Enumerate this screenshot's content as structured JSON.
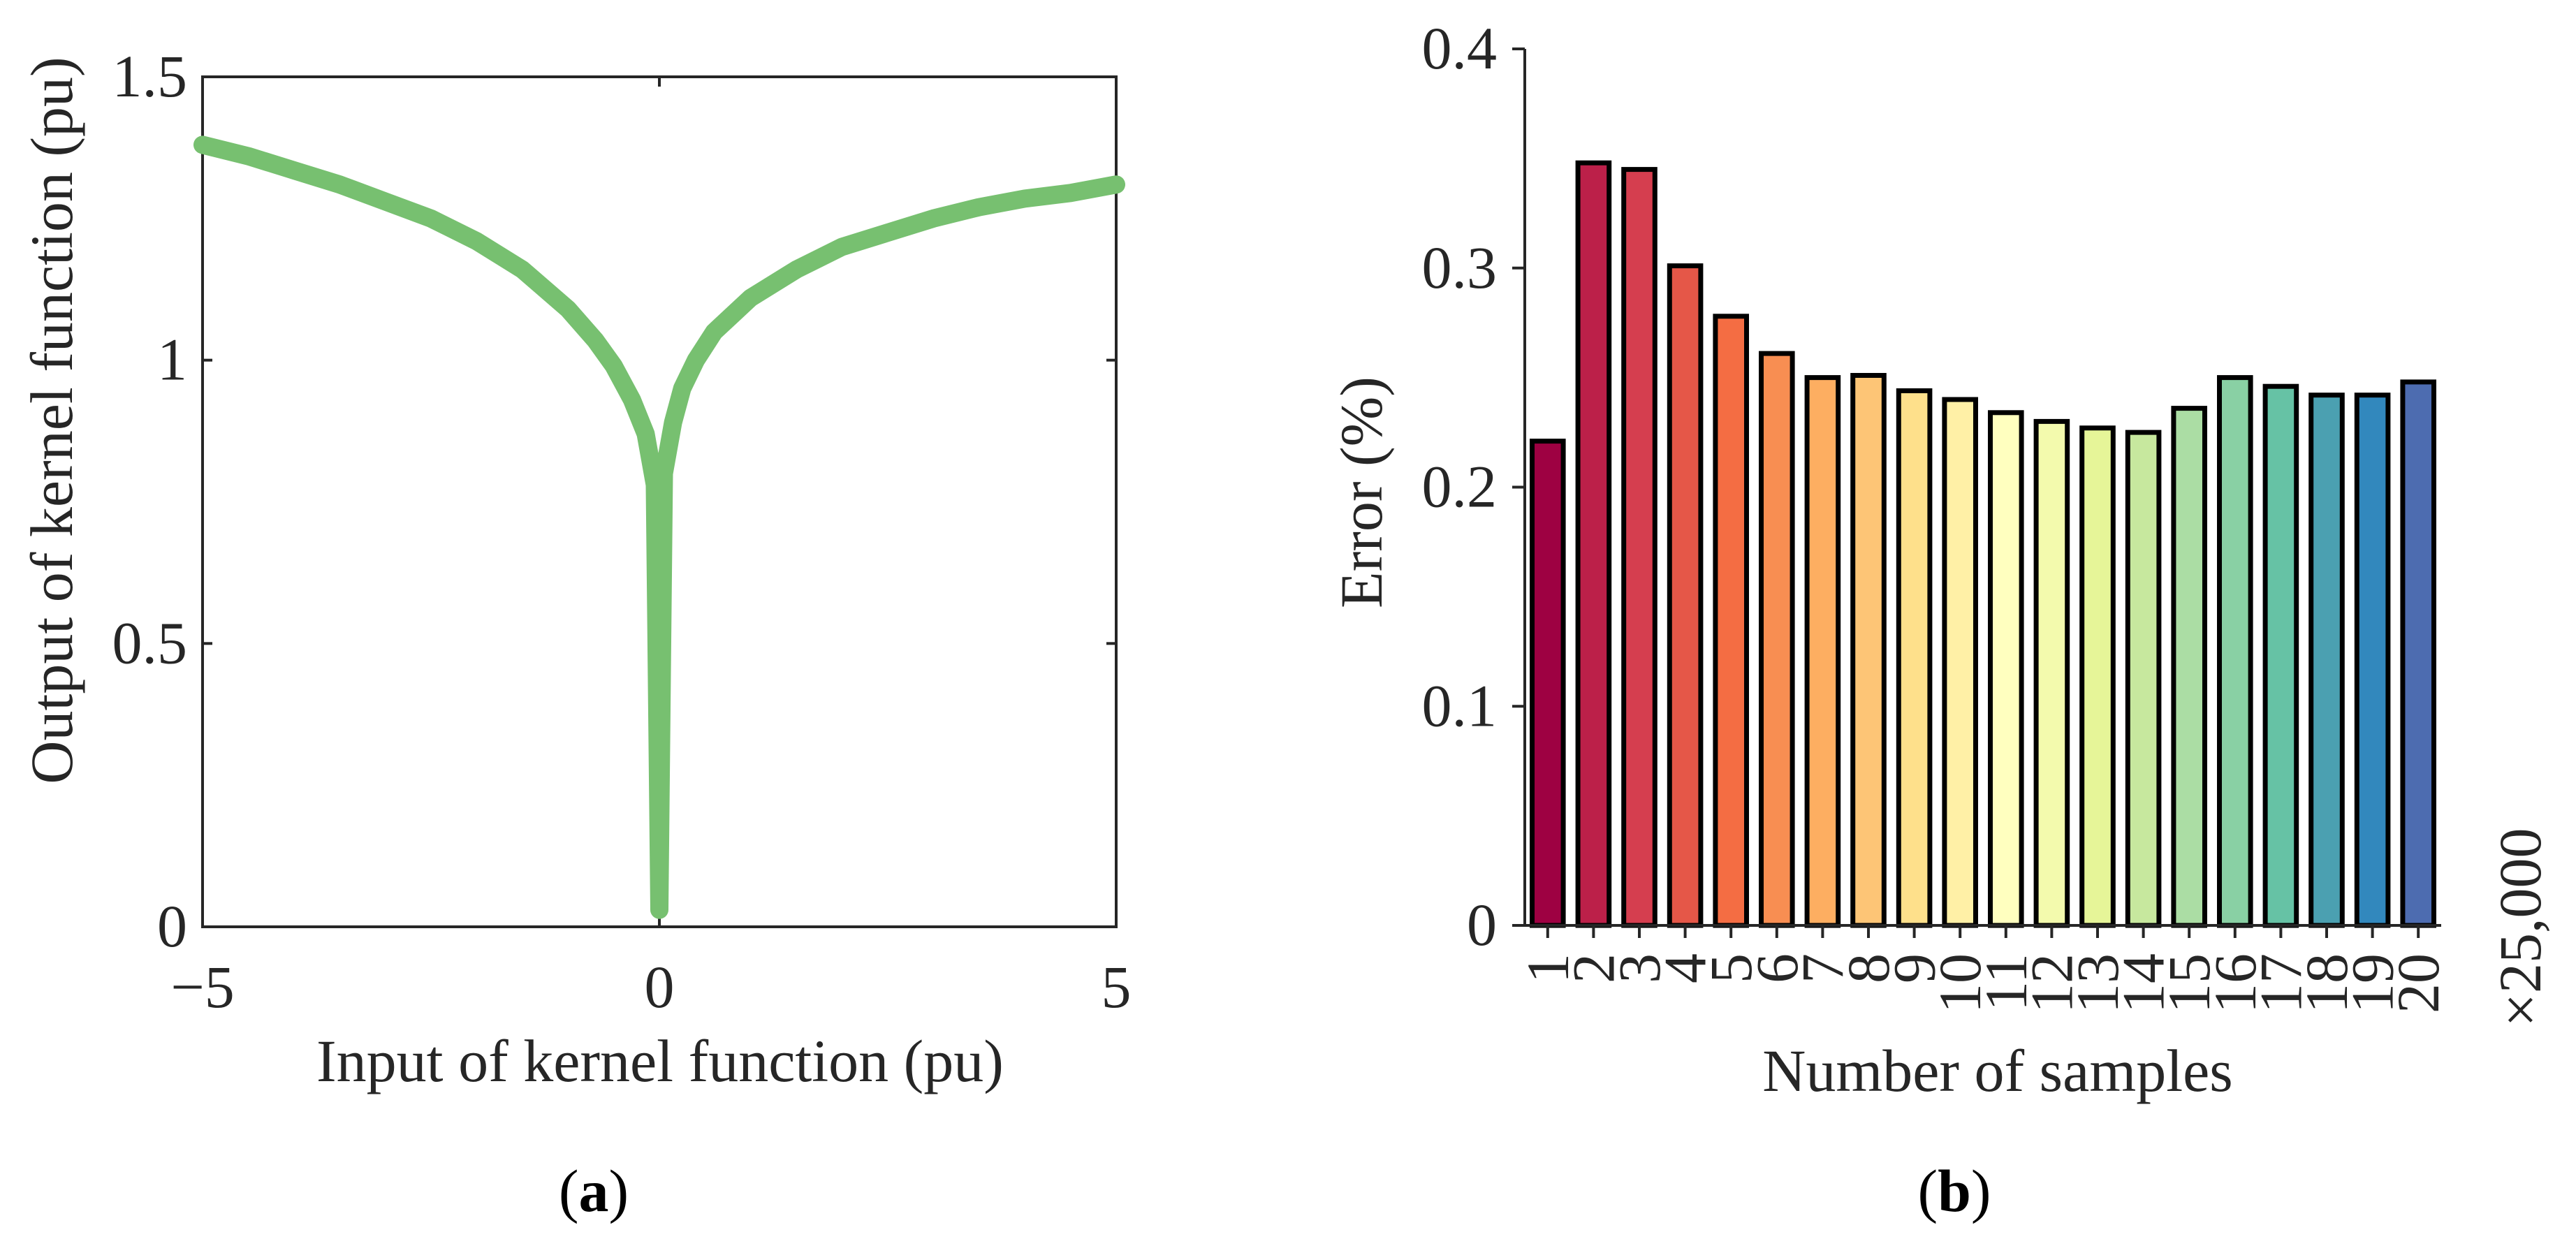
{
  "panels": {
    "a": {
      "label_open": "(",
      "label_letter": "a",
      "label_close": ")"
    },
    "b": {
      "label_open": "(",
      "label_letter": "b",
      "label_close": ")"
    }
  },
  "chart_data": [
    {
      "id": "a",
      "type": "line",
      "title": "",
      "xlabel": "Input of kernel function (pu)",
      "ylabel": "Output of kernel function (pu)",
      "xlim": [
        -5,
        5
      ],
      "ylim": [
        0,
        1.5
      ],
      "xticks": [
        -5,
        0,
        5
      ],
      "xtick_labels": [
        "−5",
        "0",
        "5"
      ],
      "yticks": [
        0,
        0.5,
        1,
        1.5
      ],
      "ytick_labels": [
        "0",
        "0.5",
        "1",
        "1.5"
      ],
      "grid": false,
      "box": true,
      "series": [
        {
          "name": "kernel function",
          "color": "#77c070",
          "x": [
            -5,
            -4.5,
            -4,
            -3.5,
            -3,
            -2.5,
            -2,
            -1.5,
            -1,
            -0.7,
            -0.5,
            -0.3,
            -0.15,
            -0.05,
            0,
            0.05,
            0.15,
            0.25,
            0.4,
            0.6,
            0.8,
            1,
            1.5,
            2,
            2.5,
            3,
            3.5,
            4,
            4.5,
            5
          ],
          "y": [
            1.38,
            1.36,
            1.335,
            1.31,
            1.28,
            1.25,
            1.21,
            1.16,
            1.09,
            1.035,
            0.99,
            0.93,
            0.87,
            0.78,
            0.03,
            0.8,
            0.89,
            0.95,
            1.0,
            1.05,
            1.08,
            1.11,
            1.16,
            1.2,
            1.225,
            1.25,
            1.27,
            1.285,
            1.295,
            1.31
          ]
        }
      ]
    },
    {
      "id": "b",
      "type": "bar",
      "title": "",
      "xlabel": "Number of samples",
      "ylabel": "Error (%)",
      "multiplier_note": "×25,000",
      "ylim": [
        0,
        0.4
      ],
      "yticks": [
        0,
        0.1,
        0.2,
        0.3,
        0.4
      ],
      "ytick_labels": [
        "0",
        "0.1",
        "0.2",
        "0.3",
        "0.4"
      ],
      "grid": false,
      "categories": [
        "1",
        "2",
        "3",
        "4",
        "5",
        "6",
        "7",
        "8",
        "9",
        "10",
        "11",
        "12",
        "13",
        "14",
        "15",
        "16",
        "17",
        "18",
        "19",
        "20"
      ],
      "values": [
        0.221,
        0.348,
        0.345,
        0.301,
        0.278,
        0.261,
        0.25,
        0.251,
        0.244,
        0.24,
        0.234,
        0.23,
        0.227,
        0.225,
        0.236,
        0.25,
        0.246,
        0.242,
        0.242,
        0.248
      ],
      "colors": [
        "#9e0142",
        "#bc2049",
        "#d53e4f",
        "#e55748",
        "#f46d43",
        "#f88e52",
        "#fdae61",
        "#fdc576",
        "#fee08b",
        "#fff0a6",
        "#ffffbf",
        "#f3faad",
        "#e6f598",
        "#c7e89e",
        "#abdda4",
        "#89d0a4",
        "#66c2a5",
        "#4ba0b1",
        "#3288bd",
        "#4d6cb0"
      ]
    }
  ]
}
